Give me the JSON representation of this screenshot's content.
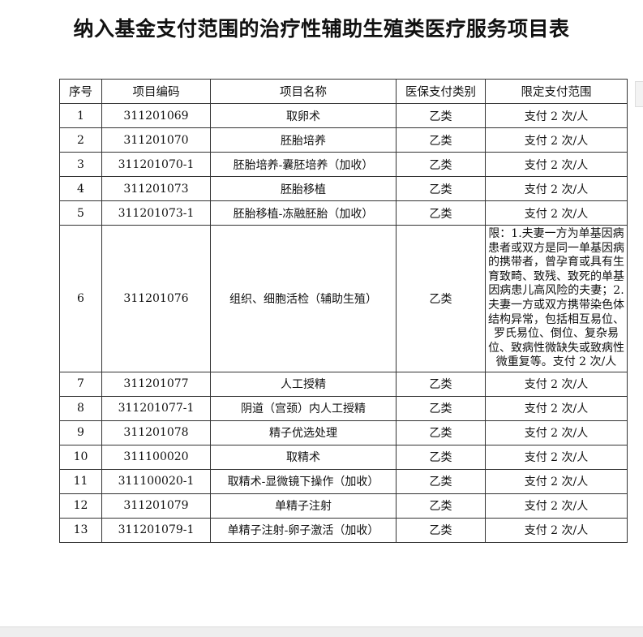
{
  "title": "纳入基金支付范围的治疗性辅助生殖类医疗服务项目表",
  "table": {
    "headers": [
      "序号",
      "项目编码",
      "项目名称",
      "医保支付类别",
      "限定支付范围"
    ],
    "rows": [
      [
        "1",
        "311201069",
        "取卵术",
        "乙类",
        "支付 2 次/人"
      ],
      [
        "2",
        "311201070",
        "胚胎培养",
        "乙类",
        "支付 2 次/人"
      ],
      [
        "3",
        "311201070-1",
        "胚胎培养-囊胚培养（加收）",
        "乙类",
        "支付 2 次/人"
      ],
      [
        "4",
        "311201073",
        "胚胎移植",
        "乙类",
        "支付 2 次/人"
      ],
      [
        "5",
        "311201073-1",
        "胚胎移植-冻融胚胎（加收）",
        "乙类",
        "支付 2 次/人"
      ],
      [
        "6",
        "311201076",
        "组织、细胞活检（辅助生殖）",
        "乙类",
        "限：1.夫妻一方为单基因病患者或双方是同一单基因病的携带者，曾孕育或具有生育致畸、致残、致死的单基因病患儿高风险的夫妻；2.夫妻一方或双方携带染色体结构异常，包括相互易位、罗氏易位、倒位、复杂易位、致病性微缺失或致病性微重复等。支付 2 次/人"
      ],
      [
        "7",
        "311201077",
        "人工授精",
        "乙类",
        "支付 2 次/人"
      ],
      [
        "8",
        "311201077-1",
        "阴道（宫颈）内人工授精",
        "乙类",
        "支付 2 次/人"
      ],
      [
        "9",
        "311201078",
        "精子优选处理",
        "乙类",
        "支付 2 次/人"
      ],
      [
        "10",
        "311100020",
        "取精术",
        "乙类",
        "支付 2 次/人"
      ],
      [
        "11",
        "311100020-1",
        "取精术-显微镜下操作（加收）",
        "乙类",
        "支付 2 次/人"
      ],
      [
        "12",
        "311201079",
        "单精子注射",
        "乙类",
        "支付 2 次/人"
      ],
      [
        "13",
        "311201079-1",
        "单精子注射-卵子激活（加收）",
        "乙类",
        "支付 2 次/人"
      ]
    ]
  }
}
